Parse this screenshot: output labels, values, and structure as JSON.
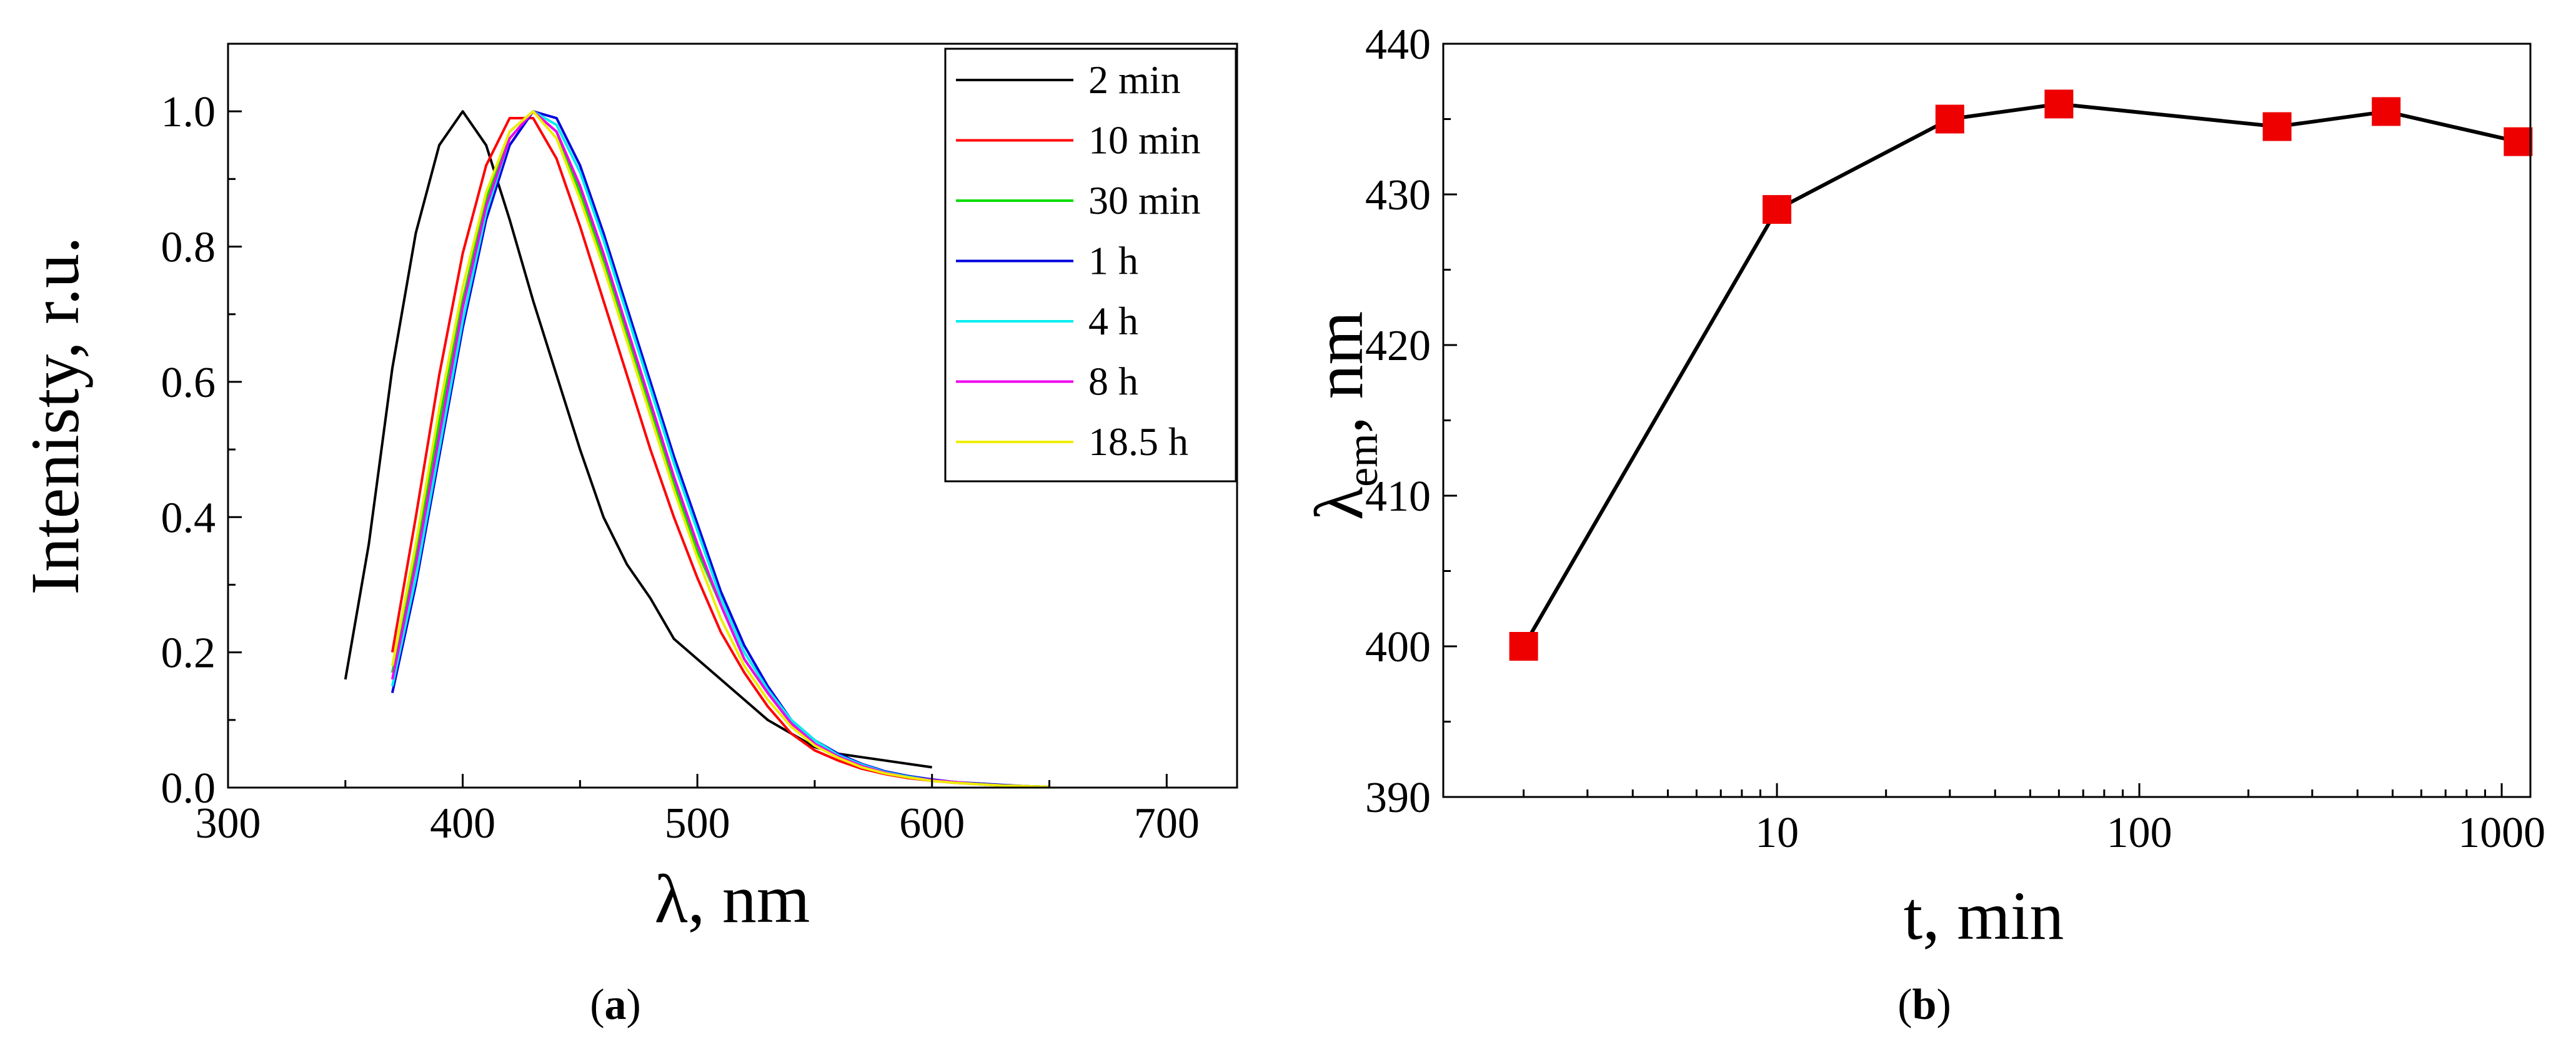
{
  "chart_data": [
    {
      "type": "line",
      "panel_label": "a",
      "xlabel": "λ, nm",
      "ylabel": "Intenisty, r.u.",
      "xlim": [
        300,
        730
      ],
      "ylim": [
        0,
        1.1
      ],
      "xticks": [
        "300",
        "400",
        "500",
        "600",
        "700"
      ],
      "yticks": [
        "0.0",
        "0.2",
        "0.4",
        "0.6",
        "0.8",
        "1.0"
      ],
      "legend_position": "top-right",
      "series": [
        {
          "name": "2 min",
          "color": "#000000",
          "x": [
            350,
            360,
            370,
            380,
            390,
            400,
            410,
            420,
            430,
            440,
            450,
            460,
            470,
            480,
            490,
            500,
            510,
            520,
            530,
            540,
            550,
            560,
            570,
            580,
            590,
            600
          ],
          "y": [
            0.16,
            0.36,
            0.62,
            0.82,
            0.95,
            1.0,
            0.95,
            0.84,
            0.72,
            0.61,
            0.5,
            0.4,
            0.33,
            0.28,
            0.22,
            0.19,
            0.16,
            0.13,
            0.1,
            0.08,
            0.06,
            0.05,
            0.045,
            0.04,
            0.035,
            0.03
          ]
        },
        {
          "name": "10 min",
          "color": "#ff0000",
          "x": [
            370,
            380,
            390,
            400,
            410,
            420,
            430,
            440,
            450,
            460,
            470,
            480,
            490,
            500,
            510,
            520,
            530,
            540,
            550,
            560,
            570,
            580,
            590,
            600,
            610,
            620,
            630,
            640,
            650
          ],
          "y": [
            0.2,
            0.4,
            0.61,
            0.79,
            0.92,
            0.99,
            0.99,
            0.93,
            0.83,
            0.72,
            0.61,
            0.5,
            0.4,
            0.31,
            0.23,
            0.17,
            0.12,
            0.08,
            0.055,
            0.04,
            0.028,
            0.02,
            0.014,
            0.01,
            0.007,
            0.005,
            0.003,
            0.002,
            0.001
          ]
        },
        {
          "name": "30 min",
          "color": "#00dd00",
          "x": [
            370,
            380,
            390,
            400,
            410,
            420,
            430,
            440,
            450,
            460,
            470,
            480,
            490,
            500,
            510,
            520,
            530,
            540,
            550,
            560,
            570,
            580,
            590,
            600,
            610,
            620,
            630,
            640,
            650
          ],
          "y": [
            0.17,
            0.34,
            0.54,
            0.72,
            0.87,
            0.97,
            1.0,
            0.97,
            0.88,
            0.78,
            0.67,
            0.56,
            0.45,
            0.35,
            0.27,
            0.19,
            0.14,
            0.095,
            0.065,
            0.045,
            0.032,
            0.022,
            0.015,
            0.011,
            0.008,
            0.005,
            0.003,
            0.002,
            0.001
          ]
        },
        {
          "name": "1 h",
          "color": "#0000dd",
          "x": [
            370,
            380,
            390,
            400,
            410,
            420,
            430,
            440,
            450,
            460,
            470,
            480,
            490,
            500,
            510,
            520,
            530,
            540,
            550,
            560,
            570,
            580,
            590,
            600,
            610,
            620,
            630,
            640,
            650
          ],
          "y": [
            0.14,
            0.3,
            0.49,
            0.68,
            0.84,
            0.95,
            1.0,
            0.99,
            0.92,
            0.82,
            0.71,
            0.6,
            0.49,
            0.39,
            0.29,
            0.21,
            0.15,
            0.1,
            0.07,
            0.05,
            0.035,
            0.024,
            0.017,
            0.012,
            0.008,
            0.006,
            0.004,
            0.002,
            0.001
          ]
        },
        {
          "name": "4 h",
          "color": "#00eeee",
          "x": [
            370,
            380,
            390,
            400,
            410,
            420,
            430,
            440,
            450,
            460,
            470,
            480,
            490,
            500,
            510,
            520,
            530,
            540,
            550,
            560,
            570,
            580,
            590,
            600,
            610,
            620,
            630,
            640,
            650
          ],
          "y": [
            0.15,
            0.31,
            0.5,
            0.69,
            0.85,
            0.96,
            1.0,
            0.98,
            0.91,
            0.81,
            0.7,
            0.59,
            0.48,
            0.38,
            0.28,
            0.2,
            0.145,
            0.1,
            0.07,
            0.048,
            0.034,
            0.023,
            0.016,
            0.011,
            0.008,
            0.005,
            0.003,
            0.002,
            0.001
          ]
        },
        {
          "name": "8 h",
          "color": "#ee00ee",
          "x": [
            370,
            380,
            390,
            400,
            410,
            420,
            430,
            440,
            450,
            460,
            470,
            480,
            490,
            500,
            510,
            520,
            530,
            540,
            550,
            560,
            570,
            580,
            590,
            600,
            610,
            620,
            630,
            640,
            650
          ],
          "y": [
            0.16,
            0.33,
            0.52,
            0.71,
            0.86,
            0.96,
            1.0,
            0.97,
            0.89,
            0.79,
            0.68,
            0.57,
            0.46,
            0.36,
            0.27,
            0.19,
            0.14,
            0.095,
            0.065,
            0.046,
            0.032,
            0.022,
            0.015,
            0.011,
            0.008,
            0.005,
            0.003,
            0.002,
            0.001
          ]
        },
        {
          "name": "18.5 h",
          "color": "#eeee00",
          "x": [
            370,
            380,
            390,
            400,
            410,
            420,
            430,
            440,
            450,
            460,
            470,
            480,
            490,
            500,
            510,
            520,
            530,
            540,
            550,
            560,
            570,
            580,
            590,
            600,
            610,
            620,
            630,
            640,
            650
          ],
          "y": [
            0.18,
            0.36,
            0.56,
            0.74,
            0.88,
            0.97,
            1.0,
            0.96,
            0.87,
            0.77,
            0.66,
            0.55,
            0.44,
            0.34,
            0.25,
            0.18,
            0.13,
            0.09,
            0.062,
            0.044,
            0.03,
            0.021,
            0.015,
            0.01,
            0.007,
            0.005,
            0.003,
            0.002,
            0.001
          ]
        }
      ]
    },
    {
      "type": "line",
      "panel_label": "b",
      "xlabel": "t, min",
      "ylabel_main": "λ",
      "ylabel_sub": "em",
      "ylabel_rest": ", nm",
      "xscale": "log",
      "xlim": [
        1.2,
        1200
      ],
      "ylim": [
        390,
        440
      ],
      "xticks": [
        {
          "value": 10,
          "label": "10"
        },
        {
          "value": 100,
          "label": "100"
        },
        {
          "value": 1000,
          "label": "1000"
        }
      ],
      "yticks": [
        "390",
        "400",
        "410",
        "420",
        "430",
        "440"
      ],
      "line_color": "#000000",
      "marker_color": "#ee0000",
      "marker": "square",
      "x": [
        2,
        10,
        30,
        60,
        240,
        480,
        1110
      ],
      "y": [
        400,
        429,
        435,
        436,
        434.5,
        435.5,
        433.5
      ]
    }
  ]
}
